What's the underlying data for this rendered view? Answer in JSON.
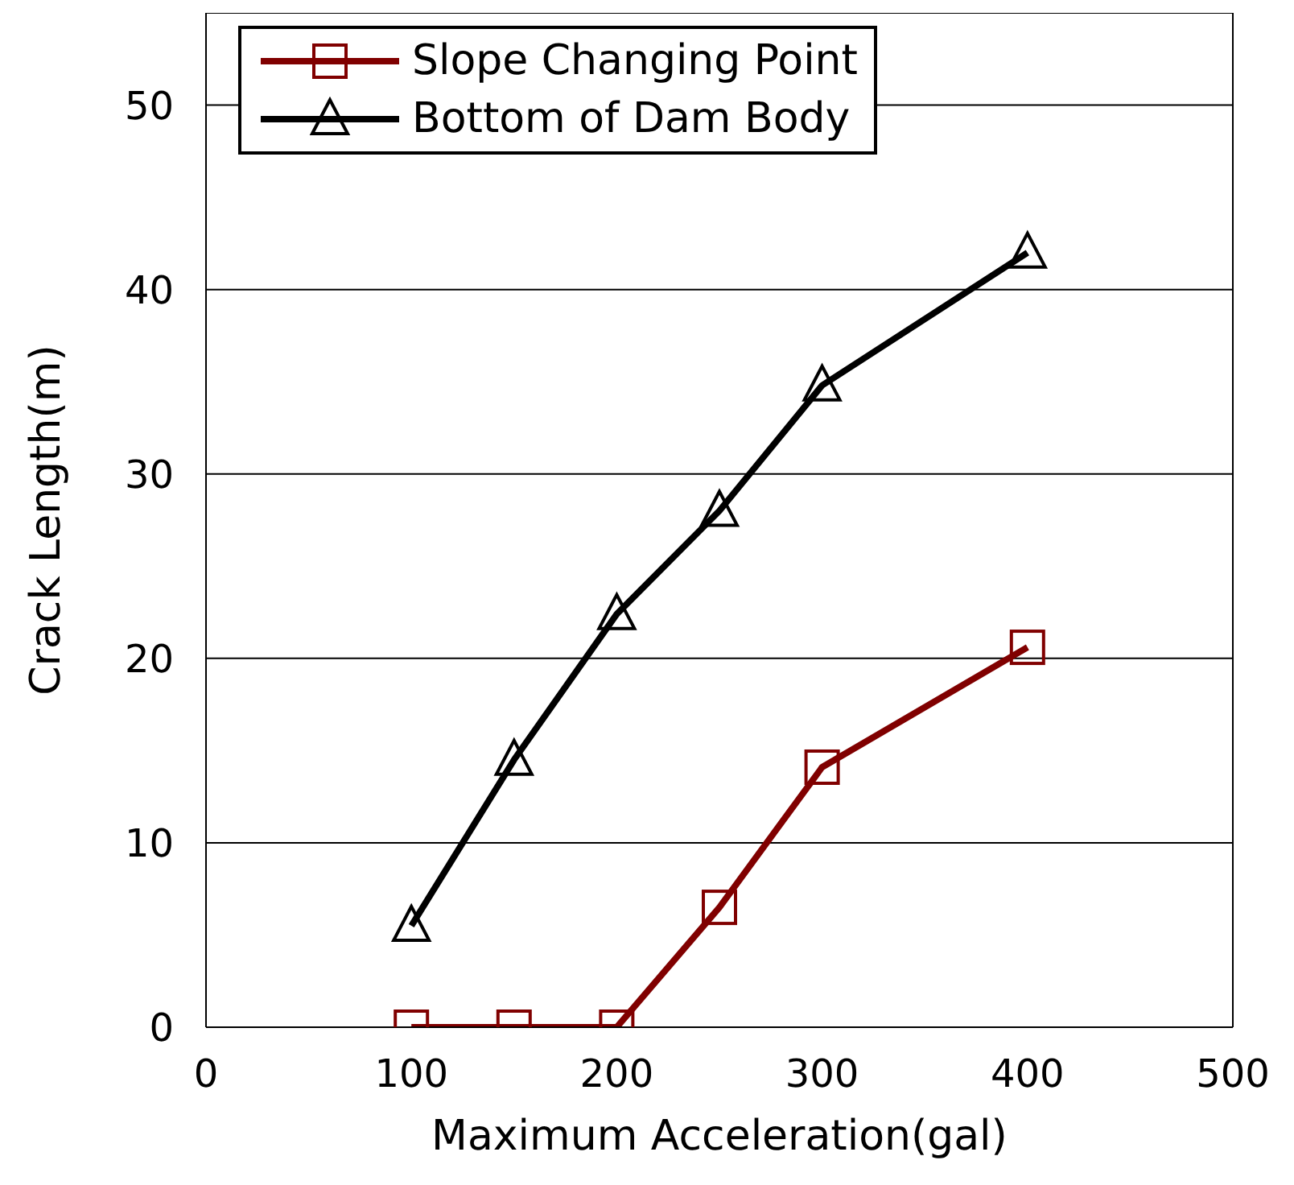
{
  "chart_data": {
    "type": "line",
    "xlabel": "Maximum Acceleration(gal)",
    "ylabel": "Crack Length(m)",
    "x": [
      100,
      150,
      200,
      250,
      300,
      400
    ],
    "series": [
      {
        "name": "Slope Changing Point",
        "color": "#800000",
        "marker": "square",
        "values": [
          0,
          0,
          0,
          6.5,
          14.1,
          20.6
        ]
      },
      {
        "name": "Bottom of Dam Body",
        "color": "#000000",
        "marker": "triangle",
        "values": [
          5.5,
          14.5,
          22.4,
          28,
          34.8,
          42
        ]
      }
    ],
    "xlim": [
      0,
      500
    ],
    "xticks": [
      0,
      100,
      200,
      300,
      400,
      500
    ],
    "ylim": [
      0,
      55
    ],
    "yticks": [
      0,
      10,
      20,
      30,
      40,
      50
    ],
    "grid": "y",
    "legend": "top left",
    "line_style": "solid"
  }
}
